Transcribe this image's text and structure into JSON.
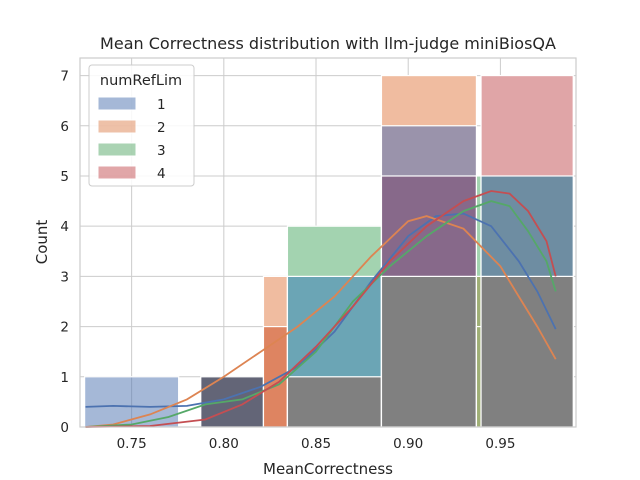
{
  "chart_data": {
    "type": "histogram",
    "title": "Mean Correctness distribution with llm-judge miniBiosQA",
    "xlabel": "MeanCorrectness",
    "ylabel": "Count",
    "xlim": [
      0.722,
      0.991
    ],
    "ylim": [
      0,
      7.35
    ],
    "xticks": [
      "0.75",
      "0.80",
      "0.85",
      "0.90",
      "0.95"
    ],
    "xtick_values": [
      0.75,
      0.8,
      0.85,
      0.9,
      0.95
    ],
    "yticks": [
      "0",
      "1",
      "2",
      "3",
      "4",
      "5",
      "6",
      "7"
    ],
    "ytick_values": [
      0,
      1,
      2,
      3,
      4,
      5,
      6,
      7
    ],
    "bin_edges": [
      0.7245,
      0.7755,
      0.7875,
      0.8215,
      0.8345,
      0.8725,
      0.8855,
      0.937,
      0.9895
    ],
    "legend": {
      "title": "numRefLim",
      "position": "top-left"
    },
    "grid": true,
    "series": [
      {
        "name": "1",
        "color": "#4c72b0",
        "bins": [
          {
            "x0": 0.7245,
            "x1": 0.7755,
            "count": 1
          },
          {
            "x0": 0.7875,
            "x1": 0.8345,
            "count": 1
          },
          {
            "x0": 0.8345,
            "x1": 0.8855,
            "count": 3
          },
          {
            "x0": 0.8855,
            "x1": 0.937,
            "count": 6
          },
          {
            "x0": 0.937,
            "x1": 0.9895,
            "count": 5
          }
        ],
        "kde": [
          [
            0.725,
            0.4
          ],
          [
            0.74,
            0.42
          ],
          [
            0.76,
            0.4
          ],
          [
            0.78,
            0.42
          ],
          [
            0.8,
            0.55
          ],
          [
            0.82,
            0.8
          ],
          [
            0.84,
            1.2
          ],
          [
            0.86,
            1.9
          ],
          [
            0.88,
            2.9
          ],
          [
            0.9,
            3.8
          ],
          [
            0.915,
            4.2
          ],
          [
            0.93,
            4.25
          ],
          [
            0.945,
            4.0
          ],
          [
            0.96,
            3.3
          ],
          [
            0.97,
            2.7
          ],
          [
            0.98,
            1.95
          ]
        ]
      },
      {
        "name": "2",
        "color": "#dd8452",
        "bins": [
          {
            "x0": 0.7875,
            "x1": 0.8345,
            "count": 1
          },
          {
            "x0": 0.8345,
            "x1": 0.8855,
            "count": 3
          },
          {
            "x0": 0.8855,
            "x1": 0.937,
            "count": 7
          },
          {
            "x0": 0.937,
            "x1": 0.9895,
            "count": 3
          }
        ],
        "kde": [
          [
            0.725,
            0.0
          ],
          [
            0.74,
            0.05
          ],
          [
            0.76,
            0.25
          ],
          [
            0.78,
            0.55
          ],
          [
            0.8,
            1.0
          ],
          [
            0.82,
            1.5
          ],
          [
            0.84,
            2.0
          ],
          [
            0.86,
            2.6
          ],
          [
            0.88,
            3.4
          ],
          [
            0.9,
            4.1
          ],
          [
            0.91,
            4.2
          ],
          [
            0.93,
            3.95
          ],
          [
            0.95,
            3.2
          ],
          [
            0.96,
            2.6
          ],
          [
            0.97,
            2.0
          ],
          [
            0.98,
            1.35
          ]
        ]
      },
      {
        "name": "3",
        "color": "#55a868",
        "bins": [
          {
            "x0": 0.7245,
            "x1": 0.7755,
            "count": 0
          },
          {
            "x0": 0.8345,
            "x1": 0.8855,
            "count": 4
          },
          {
            "x0": 0.8855,
            "x1": 0.937,
            "count": 3
          },
          {
            "x0": 0.937,
            "x1": 0.9895,
            "count": 5
          }
        ],
        "kde": [
          [
            0.725,
            0.0
          ],
          [
            0.75,
            0.05
          ],
          [
            0.77,
            0.2
          ],
          [
            0.79,
            0.45
          ],
          [
            0.81,
            0.55
          ],
          [
            0.83,
            0.85
          ],
          [
            0.85,
            1.5
          ],
          [
            0.87,
            2.5
          ],
          [
            0.89,
            3.2
          ],
          [
            0.91,
            3.8
          ],
          [
            0.93,
            4.3
          ],
          [
            0.945,
            4.5
          ],
          [
            0.955,
            4.4
          ],
          [
            0.965,
            3.9
          ],
          [
            0.975,
            3.3
          ],
          [
            0.98,
            2.7
          ]
        ]
      },
      {
        "name": "4",
        "color": "#c44e52",
        "bins": [
          {
            "x0": 0.8215,
            "x1": 0.8345,
            "count": 2
          },
          {
            "x0": 0.8345,
            "x1": 0.8855,
            "count": 1
          },
          {
            "x0": 0.8855,
            "x1": 0.937,
            "count": 5
          },
          {
            "x0": 0.937,
            "x1": 0.9895,
            "count": 7
          }
        ],
        "kde": [
          [
            0.725,
            0.0
          ],
          [
            0.76,
            0.02
          ],
          [
            0.79,
            0.15
          ],
          [
            0.81,
            0.45
          ],
          [
            0.83,
            0.9
          ],
          [
            0.85,
            1.6
          ],
          [
            0.87,
            2.4
          ],
          [
            0.89,
            3.3
          ],
          [
            0.91,
            4.0
          ],
          [
            0.93,
            4.5
          ],
          [
            0.945,
            4.7
          ],
          [
            0.955,
            4.65
          ],
          [
            0.965,
            4.3
          ],
          [
            0.975,
            3.7
          ],
          [
            0.98,
            3.0
          ]
        ]
      }
    ],
    "bars": [
      {
        "x0": 0.7245,
        "x1": 0.7755,
        "y": 1,
        "fill": "#4c72b0",
        "opacity": 0.5
      },
      {
        "x0": 0.7875,
        "x1": 0.8215,
        "y": 1,
        "fill": "#636577",
        "opacity": 1
      },
      {
        "x0": 0.8215,
        "x1": 0.8345,
        "y": 3,
        "fill": "#f0bca0",
        "opacity": 1
      },
      {
        "x0": 0.8215,
        "x1": 0.8345,
        "y": 2,
        "fill": "#de8461",
        "opacity": 1
      },
      {
        "x0": 0.8345,
        "x1": 0.8855,
        "y": 4,
        "fill": "#a3d3b0",
        "opacity": 1
      },
      {
        "x0": 0.8345,
        "x1": 0.8855,
        "y": 3,
        "fill": "#6ba5b5",
        "opacity": 1
      },
      {
        "x0": 0.8345,
        "x1": 0.8855,
        "y": 1,
        "fill": "#808080",
        "opacity": 1
      },
      {
        "x0": 0.8855,
        "x1": 0.937,
        "y": 7,
        "fill": "#f0bca0",
        "opacity": 1
      },
      {
        "x0": 0.8855,
        "x1": 0.937,
        "y": 6,
        "fill": "#9a93ab",
        "opacity": 1
      },
      {
        "x0": 0.8855,
        "x1": 0.937,
        "y": 5,
        "fill": "#87698a",
        "opacity": 1
      },
      {
        "x0": 0.8855,
        "x1": 0.937,
        "y": 3,
        "fill": "#808080",
        "opacity": 1
      },
      {
        "x0": 0.937,
        "x1": 0.9395,
        "y": 5,
        "fill": "#a3d3b0",
        "opacity": 1
      },
      {
        "x0": 0.9395,
        "x1": 0.9895,
        "y": 7,
        "fill": "#e0a5a7",
        "opacity": 1
      },
      {
        "x0": 0.937,
        "x1": 0.9395,
        "y": 3,
        "fill": "#9faf76",
        "opacity": 1
      },
      {
        "x0": 0.9395,
        "x1": 0.9895,
        "y": 5,
        "fill": "#6e8da2",
        "opacity": 1
      },
      {
        "x0": 0.937,
        "x1": 0.9395,
        "y": 2,
        "fill": "#9faf76",
        "opacity": 1
      },
      {
        "x0": 0.9395,
        "x1": 0.9895,
        "y": 3,
        "fill": "#808080",
        "opacity": 1
      }
    ]
  }
}
